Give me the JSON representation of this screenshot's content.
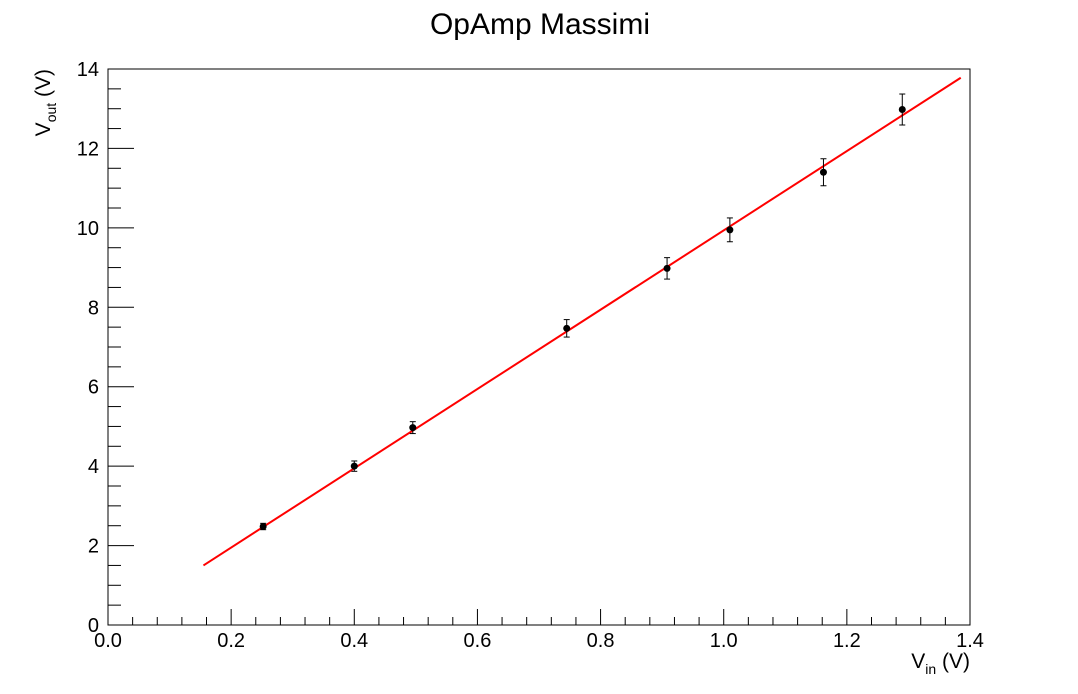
{
  "chart_data": {
    "type": "scatter",
    "title": "OpAmp Massimi",
    "xlabel": {
      "main": "V",
      "sub": "in",
      "unit": " (V)"
    },
    "ylabel": {
      "main": "V",
      "sub": "out",
      "unit": " (V)"
    },
    "xlim": [
      0.0,
      1.4
    ],
    "ylim": [
      0,
      14
    ],
    "x_ticks": [
      "0.0",
      "0.2",
      "0.4",
      "0.6",
      "0.8",
      "1.0",
      "1.2",
      "1.4"
    ],
    "y_ticks": [
      "0",
      "2",
      "4",
      "6",
      "8",
      "10",
      "12",
      "14"
    ],
    "grid": false,
    "legend": "none",
    "series": [
      {
        "type": "scatter",
        "color": "#000000",
        "points": [
          {
            "x": 0.252,
            "y": 2.48,
            "yerr": 0.08
          },
          {
            "x": 0.4,
            "y": 4.0,
            "yerr": 0.13
          },
          {
            "x": 0.495,
            "y": 4.97,
            "yerr": 0.15
          },
          {
            "x": 0.745,
            "y": 7.47,
            "yerr": 0.22
          },
          {
            "x": 0.908,
            "y": 8.98,
            "yerr": 0.27
          },
          {
            "x": 1.01,
            "y": 9.95,
            "yerr": 0.3
          },
          {
            "x": 1.162,
            "y": 11.4,
            "yerr": 0.34
          },
          {
            "x": 1.29,
            "y": 12.98,
            "yerr": 0.39
          }
        ]
      },
      {
        "type": "line",
        "color": "#ff0000",
        "x": [
          0.155,
          1.385
        ],
        "y": [
          1.5,
          13.78
        ]
      }
    ]
  }
}
